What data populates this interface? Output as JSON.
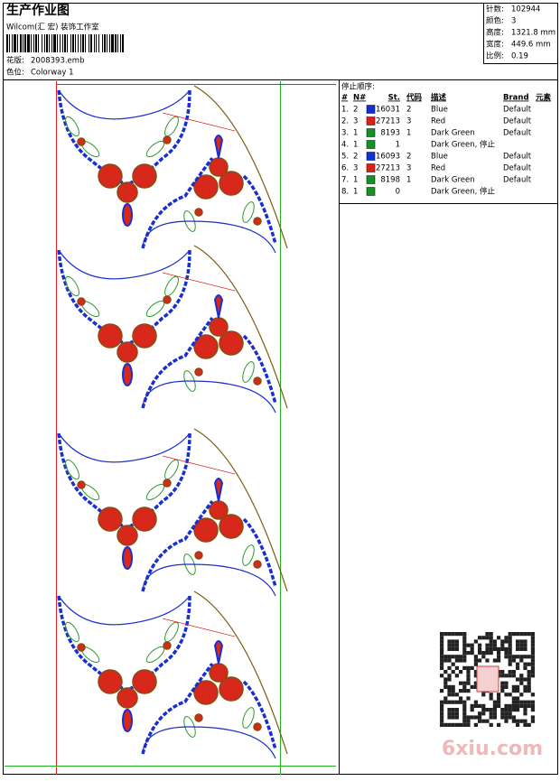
{
  "header": {
    "title": "生产作业图",
    "studio": "Wilcom(汇 宏) 装饰工作室",
    "design": {
      "label": "花版:",
      "value": "2008393.emb"
    },
    "colorway": {
      "label": "色位:",
      "value": "Colorway 1"
    }
  },
  "info": [
    {
      "label": "针数:",
      "value": "102944"
    },
    {
      "label": "颜色:",
      "value": "3"
    },
    {
      "label": "高度:",
      "value": "1321.8 mm"
    },
    {
      "label": "宽度:",
      "value": "449.6 mm"
    },
    {
      "label": "比例:",
      "value": "0.19"
    }
  ],
  "stop_sequence": {
    "title": "停止顺序:",
    "columns": [
      "#",
      "N#",
      "St.",
      "代码",
      "描述",
      "Brand",
      "元素"
    ],
    "rows": [
      {
        "index": "1.",
        "needle": "2",
        "color": "#1030d8",
        "stitches": "16031",
        "code": "2",
        "description": "Blue",
        "brand": "Default"
      },
      {
        "index": "2.",
        "needle": "3",
        "color": "#e02018",
        "stitches": "27213",
        "code": "3",
        "description": "Red",
        "brand": "Default"
      },
      {
        "index": "3.",
        "needle": "1",
        "color": "#189028",
        "stitches": "8193",
        "code": "1",
        "description": "Dark Green",
        "brand": "Default"
      },
      {
        "index": "4.",
        "needle": "1",
        "color": "#189028",
        "stitches": "1",
        "description": "Dark Green, 停止"
      },
      {
        "index": "5.",
        "needle": "2",
        "color": "#1030d8",
        "stitches": "16093",
        "code": "2",
        "description": "Blue",
        "brand": "Default"
      },
      {
        "index": "6.",
        "needle": "3",
        "color": "#e02018",
        "stitches": "27213",
        "code": "3",
        "description": "Red",
        "brand": "Default"
      },
      {
        "index": "7.",
        "needle": "1",
        "color": "#189028",
        "stitches": "8198",
        "code": "1",
        "description": "Dark Green",
        "brand": "Default"
      },
      {
        "index": "8.",
        "needle": "1",
        "color": "#189028",
        "stitches": "0",
        "description": "Dark Green, 停止"
      }
    ]
  },
  "watermark": "6xiu.com"
}
